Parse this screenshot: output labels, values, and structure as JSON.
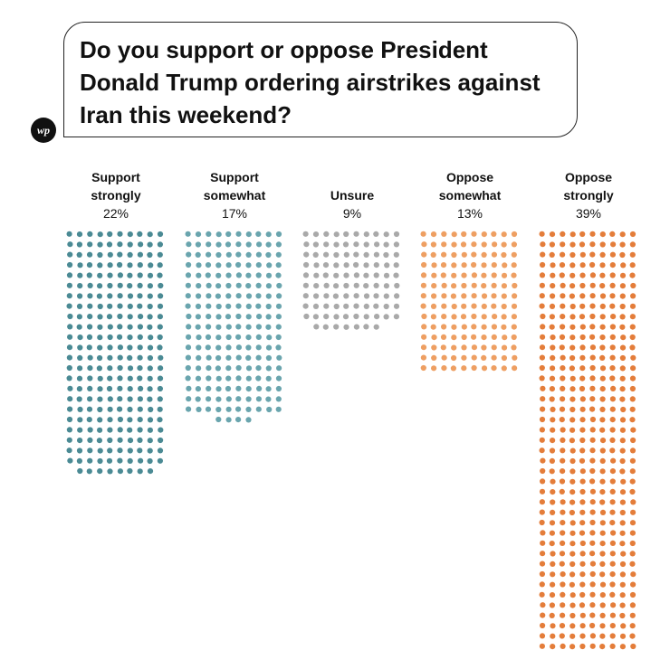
{
  "header": {
    "title": "Do you support or oppose President Donald Trump ordering airstrikes against Iran this weekend?",
    "logo_text": "wp"
  },
  "chart_data": {
    "type": "dot-matrix",
    "title": "Do you support or oppose President Donald Trump ordering airstrikes against Iran this weekend?",
    "unit": "percent of respondents",
    "categories": [
      {
        "name_line1": "Support",
        "name_line2": "strongly",
        "label": "Support strongly",
        "value": 22,
        "value_label": "22%",
        "color": "#4a8a94"
      },
      {
        "name_line1": "Support",
        "name_line2": "somewhat",
        "label": "Support somewhat",
        "value": 17,
        "value_label": "17%",
        "color": "#6aa5ae"
      },
      {
        "name_line1": "",
        "name_line2": "Unsure",
        "label": "Unsure",
        "value": 9,
        "value_label": "9%",
        "color": "#a9a9a9"
      },
      {
        "name_line1": "Oppose",
        "name_line2": "somewhat",
        "label": "Oppose somewhat",
        "value": 13,
        "value_label": "13%",
        "color": "#ee9f62"
      },
      {
        "name_line1": "Oppose",
        "name_line2": "strongly",
        "label": "Oppose strongly",
        "value": 39,
        "value_label": "39%",
        "color": "#e47d3a"
      }
    ]
  }
}
